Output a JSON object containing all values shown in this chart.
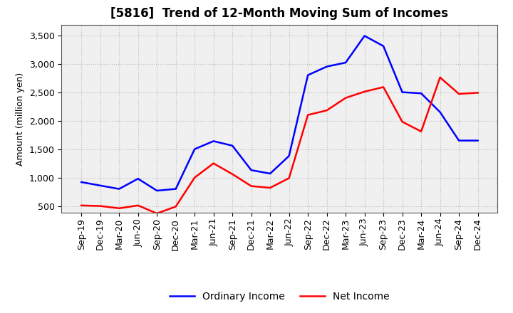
{
  "title": "[5816]  Trend of 12-Month Moving Sum of Incomes",
  "ylabel": "Amount (million yen)",
  "x_labels": [
    "Sep-19",
    "Dec-19",
    "Mar-20",
    "Jun-20",
    "Sep-20",
    "Dec-20",
    "Mar-21",
    "Jun-21",
    "Sep-21",
    "Dec-21",
    "Mar-22",
    "Jun-22",
    "Sep-22",
    "Dec-22",
    "Mar-23",
    "Jun-23",
    "Sep-23",
    "Dec-23",
    "Mar-24",
    "Jun-24",
    "Sep-24",
    "Dec-24"
  ],
  "ordinary_income": [
    920,
    860,
    800,
    980,
    770,
    800,
    1500,
    1640,
    1560,
    1130,
    1070,
    1380,
    2800,
    2950,
    3020,
    3490,
    3310,
    2500,
    2480,
    2150,
    1650,
    1650
  ],
  "net_income": [
    510,
    500,
    460,
    510,
    370,
    490,
    1000,
    1250,
    1060,
    850,
    820,
    990,
    2100,
    2180,
    2400,
    2510,
    2590,
    1980,
    1810,
    2760,
    2470,
    2490
  ],
  "ordinary_color": "#0000ff",
  "net_color": "#ff0000",
  "ylim": [
    380,
    3680
  ],
  "yticks": [
    500,
    1000,
    1500,
    2000,
    2500,
    3000,
    3500
  ],
  "plot_bg_color": "#f0f0f0",
  "fig_bg_color": "#ffffff",
  "grid_color": "#bbbbbb",
  "title_fontsize": 12,
  "axis_label_fontsize": 9,
  "tick_fontsize": 9,
  "legend_fontsize": 10,
  "line_width": 1.8
}
